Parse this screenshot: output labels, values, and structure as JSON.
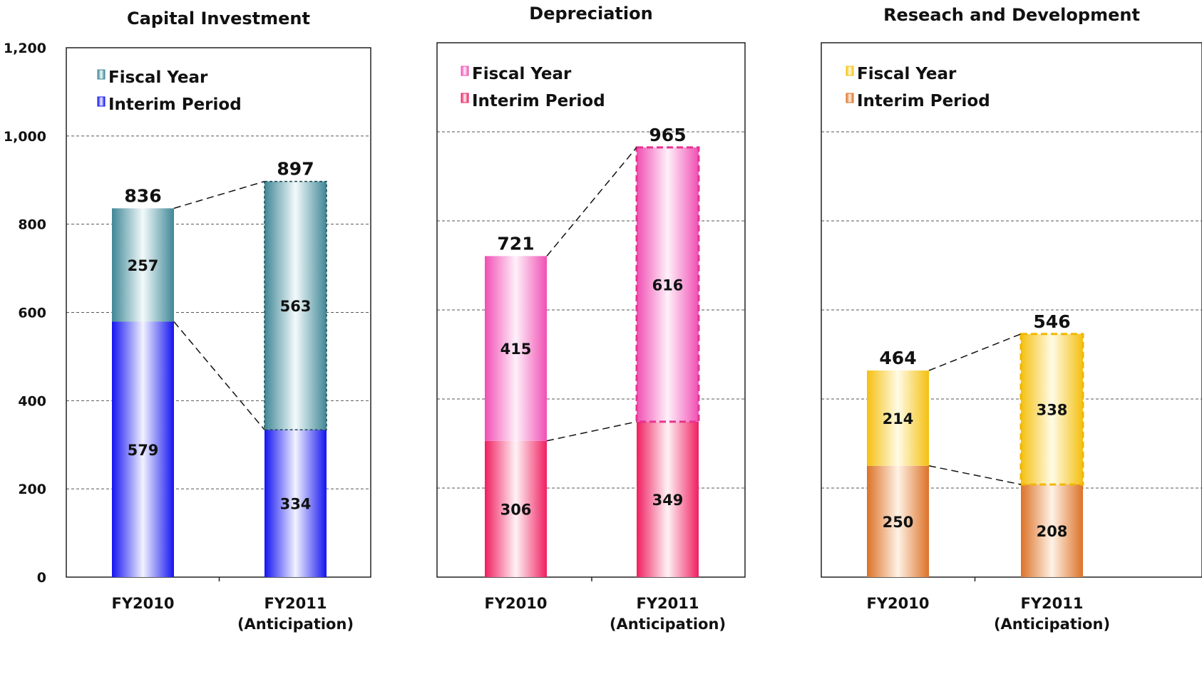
{
  "chart_data": [
    {
      "type": "bar",
      "stacked": true,
      "title": "Capital Investment",
      "categories": [
        "FY2010",
        "FY2011"
      ],
      "category_sublabels": [
        "",
        "(Anticipation)"
      ],
      "ylim": [
        0,
        1200
      ],
      "yticks": [
        "0",
        "200",
        "400",
        "600",
        "800",
        "1,000",
        "1,200"
      ],
      "series": [
        {
          "name": "Interim Period",
          "values": [
            579,
            334
          ],
          "color": "#2020ee"
        },
        {
          "name": "Fiscal Year",
          "values": [
            257,
            563
          ],
          "color": "#4a8f9e"
        }
      ],
      "totals": [
        836,
        897
      ],
      "legend_position": "top-left",
      "grid": true
    },
    {
      "type": "bar",
      "stacked": true,
      "title": "Depreciation",
      "categories": [
        "FY2010",
        "FY2011"
      ],
      "category_sublabels": [
        "",
        "(Anticipation)"
      ],
      "ylim": [
        0,
        1200
      ],
      "series": [
        {
          "name": "Interim Period",
          "values": [
            306,
            349
          ],
          "color": "#f0266b"
        },
        {
          "name": "Fiscal Year",
          "values": [
            415,
            616
          ],
          "color": "#f257b8"
        }
      ],
      "totals": [
        721,
        965
      ],
      "legend_position": "top-left",
      "grid": true
    },
    {
      "type": "bar",
      "stacked": true,
      "title": "Reseach and Development",
      "categories": [
        "FY2010",
        "FY2011"
      ],
      "category_sublabels": [
        "",
        "(Anticipation)"
      ],
      "ylim": [
        0,
        1200
      ],
      "series": [
        {
          "name": "Interim Period",
          "values": [
            250,
            208
          ],
          "color": "#e07a2e"
        },
        {
          "name": "Fiscal Year",
          "values": [
            214,
            338
          ],
          "color": "#f5c51d"
        }
      ],
      "totals": [
        464,
        546
      ],
      "legend_position": "top-left",
      "grid": true
    }
  ]
}
